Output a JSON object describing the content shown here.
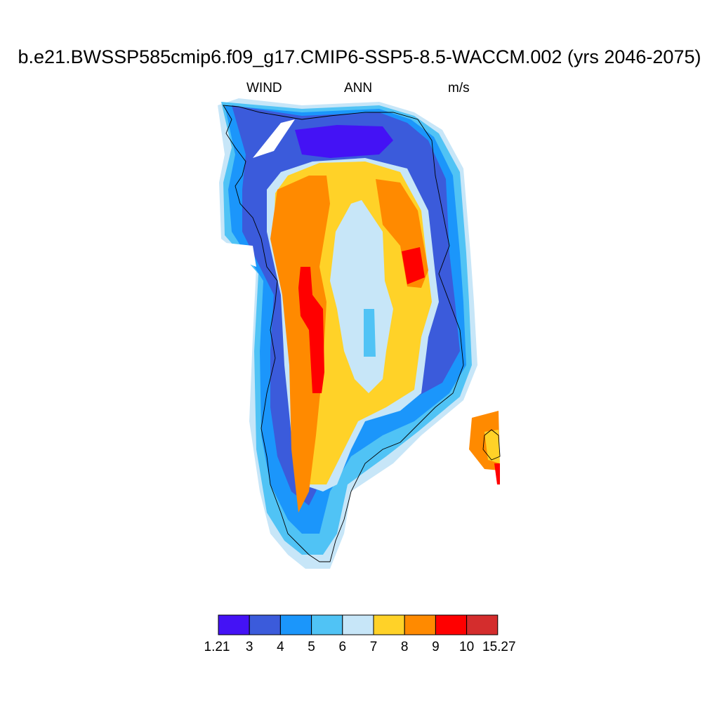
{
  "title": "b.e21.BWSSP585cmip6.f09_g17.CMIP6-SSP5-8.5-WACCM.002 (yrs 2046-2075)",
  "variable": "WIND",
  "period": "ANN",
  "units": "m/s",
  "colorbar": {
    "colors": [
      "#4412f5",
      "#3b5bdb",
      "#1b96fb",
      "#50c3f5",
      "#c7e6f8",
      "#ffd228",
      "#ff8a00",
      "#ff0000",
      "#d42d2d"
    ],
    "ticks": [
      "1.21",
      "3",
      "4",
      "5",
      "6",
      "7",
      "8",
      "9",
      "10",
      "15.27"
    ]
  }
}
